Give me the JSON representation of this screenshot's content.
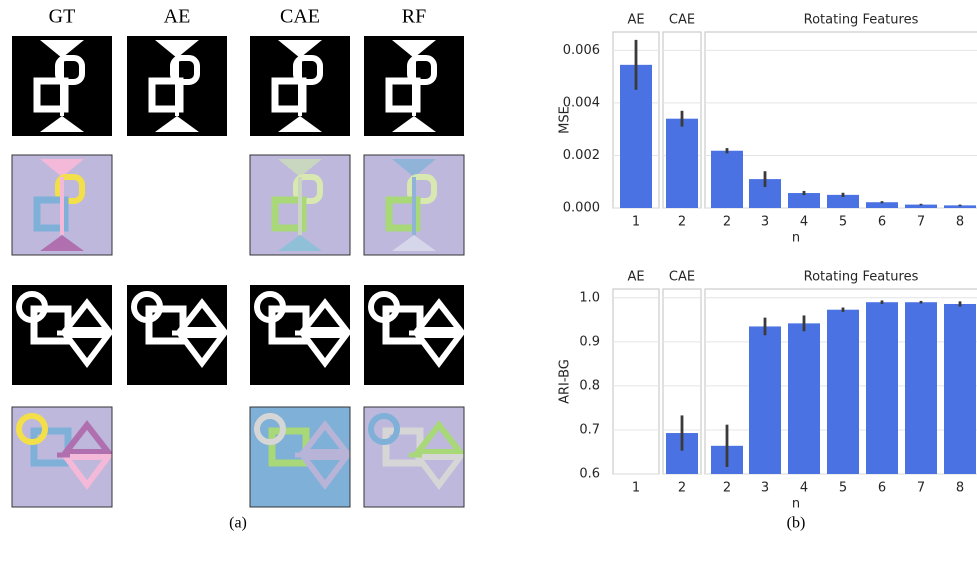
{
  "panel_a": {
    "columns": [
      "GT",
      "AE",
      "CAE",
      "RF"
    ],
    "caption": "(a)"
  },
  "panel_b": {
    "caption": "(b)"
  },
  "chart_data": [
    {
      "type": "bar",
      "groups": [
        "AE",
        "CAE",
        "Rotating Features"
      ],
      "categories": [
        "1",
        "2",
        "2",
        "3",
        "4",
        "5",
        "6",
        "7",
        "8"
      ],
      "values": [
        0.00545,
        0.0034,
        0.00218,
        0.0011,
        0.00057,
        0.0005,
        0.00022,
        0.00013,
        0.0001
      ],
      "errors": [
        0.00095,
        0.0003,
        0.0001,
        0.0003,
        8e-05,
        8e-05,
        4e-05,
        3e-05,
        3e-05
      ],
      "color": "#4a72e3",
      "xlabel": "n",
      "ylabel": "MSE",
      "ylim": [
        0,
        0.0067
      ],
      "yticks": [
        {
          "value": 0,
          "label": "0.000"
        },
        {
          "value": 0.002,
          "label": "0.002"
        },
        {
          "value": 0.004,
          "label": "0.004"
        },
        {
          "value": 0.006,
          "label": "0.006"
        }
      ],
      "grid": true
    },
    {
      "type": "bar",
      "groups": [
        "AE",
        "CAE",
        "Rotating Features"
      ],
      "categories": [
        "1",
        "2",
        "2",
        "3",
        "4",
        "5",
        "6",
        "7",
        "8"
      ],
      "values": [
        null,
        0.693,
        0.664,
        0.935,
        0.942,
        0.973,
        0.99,
        0.99,
        0.986
      ],
      "errors": [
        null,
        0.04,
        0.048,
        0.02,
        0.018,
        0.005,
        0.004,
        0.003,
        0.006
      ],
      "color": "#4a72e3",
      "xlabel": "n",
      "ylabel": "ARI-BG",
      "ylim": [
        0.6,
        1.02
      ],
      "yticks": [
        0.6,
        0.7,
        0.8,
        0.9,
        {
          "value": 1,
          "label": "1.0"
        }
      ],
      "grid": true
    }
  ]
}
